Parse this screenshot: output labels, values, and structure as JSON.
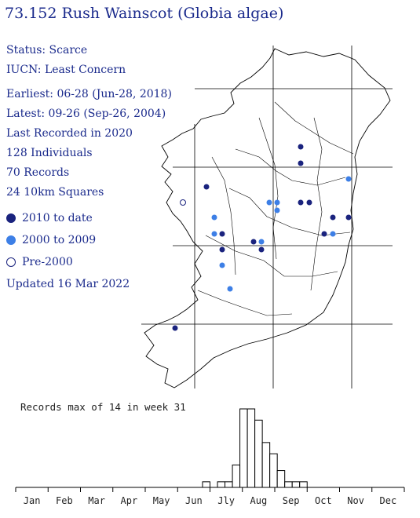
{
  "title": "73.152 Rush Wainscot (Globia algae)",
  "info": {
    "status": "Status: Scarce",
    "iucn": "IUCN: Least Concern",
    "earliest": "Earliest: 06-28 (Jun-28, 2018)",
    "latest": "Latest: 09-26 (Sep-26, 2004)",
    "last_recorded": "Last Recorded in 2020",
    "individuals": "128 Individuals",
    "records": "70 Records",
    "squares": "24 10km Squares"
  },
  "legend": {
    "items": [
      {
        "label": "2010 to date",
        "color": "#1a237e",
        "fill": true
      },
      {
        "label": "2000 to 2009",
        "color": "#3d7fe6",
        "fill": true
      },
      {
        "label": "Pre-2000",
        "color": "#1a237e",
        "fill": false
      }
    ]
  },
  "updated": "Updated 16 Mar 2022",
  "map": {
    "points_recent": [
      [
        383,
        187
      ],
      [
        383,
        208
      ],
      [
        263,
        238
      ],
      [
        383,
        258
      ],
      [
        394,
        258
      ],
      [
        424,
        277
      ],
      [
        444,
        277
      ],
      [
        413,
        298
      ],
      [
        283,
        298
      ],
      [
        323,
        308
      ],
      [
        333,
        318
      ],
      [
        283,
        318
      ],
      [
        223,
        418
      ]
    ],
    "points_2000s": [
      [
        444,
        228
      ],
      [
        343,
        258
      ],
      [
        353,
        258
      ],
      [
        353,
        268
      ],
      [
        273,
        277
      ],
      [
        273,
        298
      ],
      [
        333,
        308
      ],
      [
        424,
        298
      ],
      [
        283,
        338
      ],
      [
        293,
        368
      ]
    ],
    "points_pre2000": [
      [
        233,
        258
      ]
    ]
  },
  "chart_data": {
    "type": "bar",
    "title": "Records max of 14 in week 31",
    "month_labels": [
      "Jan",
      "Feb",
      "Mar",
      "Apr",
      "May",
      "Jun",
      "Jly",
      "Aug",
      "Sep",
      "Oct",
      "Nov",
      "Dec"
    ],
    "weeks": [
      26,
      27,
      28,
      29,
      30,
      31,
      32,
      33,
      34,
      35,
      36,
      37,
      38,
      39
    ],
    "values": [
      1,
      0,
      1,
      1,
      4,
      14,
      14,
      12,
      8,
      6,
      3,
      1,
      1,
      1
    ],
    "ymax": 14
  }
}
